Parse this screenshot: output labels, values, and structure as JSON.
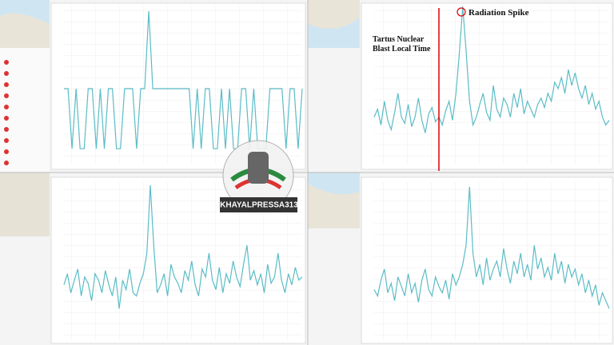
{
  "chart_data": [
    {
      "type": "line",
      "color": "#5bbcc6",
      "ylim": [
        0,
        100
      ],
      "values": [
        48,
        48,
        10,
        48,
        10,
        10,
        48,
        48,
        10,
        48,
        10,
        48,
        48,
        10,
        10,
        48,
        48,
        48,
        10,
        48,
        48,
        97,
        48,
        48,
        48,
        48,
        48,
        48,
        48,
        48,
        48,
        48,
        10,
        48,
        10,
        48,
        48,
        10,
        10,
        48,
        10,
        48,
        10,
        10,
        48,
        48,
        10,
        48,
        10,
        10,
        10,
        48,
        48,
        48,
        48,
        10,
        48,
        48,
        10,
        48
      ]
    },
    {
      "type": "line",
      "color": "#5bbcc6",
      "ylim": [
        0,
        100
      ],
      "annotations": [
        "Radiation Spike",
        "Tartus Nuclear Blast Local Time"
      ],
      "values": [
        30,
        35,
        25,
        40,
        28,
        22,
        33,
        45,
        30,
        26,
        38,
        24,
        30,
        42,
        28,
        20,
        32,
        36,
        27,
        30,
        25,
        34,
        40,
        28,
        45,
        70,
        100,
        72,
        40,
        25,
        30,
        38,
        45,
        33,
        28,
        50,
        35,
        30,
        42,
        38,
        30,
        45,
        36,
        48,
        32,
        40,
        35,
        30,
        38,
        42,
        36,
        45,
        40,
        52,
        48,
        55,
        45,
        60,
        50,
        58,
        48,
        42,
        50,
        38,
        45,
        35,
        40,
        30,
        25,
        28
      ]
    },
    {
      "type": "line",
      "color": "#5bbcc6",
      "ylim": [
        0,
        100
      ],
      "values": [
        35,
        42,
        30,
        38,
        45,
        28,
        40,
        36,
        25,
        42,
        38,
        30,
        44,
        35,
        28,
        40,
        20,
        38,
        32,
        45,
        30,
        28,
        36,
        42,
        55,
        98,
        60,
        30,
        35,
        42,
        28,
        48,
        40,
        36,
        30,
        44,
        38,
        50,
        35,
        28,
        45,
        40,
        55,
        38,
        32,
        46,
        30,
        42,
        36,
        50,
        40,
        34,
        48,
        60,
        38,
        44,
        35,
        42,
        30,
        48,
        36,
        40,
        55,
        38,
        30,
        42,
        35,
        46,
        38,
        40
      ]
    },
    {
      "type": "line",
      "color": "#5bbcc6",
      "ylim": [
        0,
        100
      ],
      "values": [
        32,
        28,
        38,
        45,
        30,
        36,
        25,
        40,
        34,
        28,
        42,
        30,
        36,
        24,
        38,
        45,
        32,
        28,
        40,
        34,
        30,
        38,
        26,
        42,
        35,
        40,
        48,
        60,
        97,
        55,
        40,
        48,
        35,
        52,
        38,
        45,
        50,
        40,
        58,
        45,
        36,
        50,
        42,
        55,
        40,
        48,
        38,
        60,
        45,
        52,
        40,
        46,
        38,
        55,
        42,
        50,
        36,
        48,
        40,
        45,
        35,
        42,
        30,
        38,
        28,
        35,
        22,
        30,
        25,
        20
      ]
    }
  ],
  "watermark": "KHAYALPRESSA313"
}
